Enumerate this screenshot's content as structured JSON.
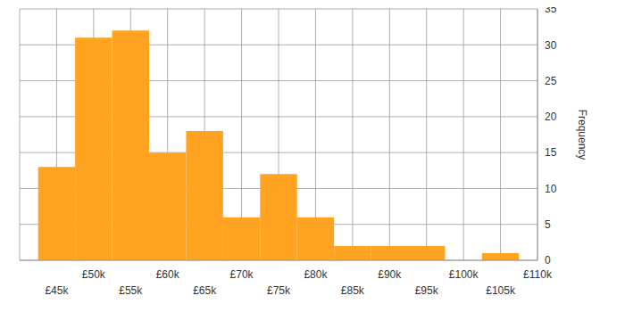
{
  "chart_data": {
    "type": "histogram",
    "y_label": "Frequency",
    "bins": [
      42500,
      47500,
      52500,
      57500,
      62500,
      67500,
      72500,
      77500,
      82500,
      87500,
      92500,
      97500,
      102500,
      107500
    ],
    "values": [
      13,
      31,
      32,
      15,
      18,
      6,
      12,
      6,
      2,
      2,
      2,
      0,
      1
    ],
    "color": "#ffa320",
    "xlim": [
      40000,
      110000
    ],
    "xticks": [
      {
        "value": 45000,
        "label": "£45k"
      },
      {
        "value": 50000,
        "label": "£50k"
      },
      {
        "value": 55000,
        "label": "£55k"
      },
      {
        "value": 60000,
        "label": "£60k"
      },
      {
        "value": 65000,
        "label": "£65k"
      },
      {
        "value": 70000,
        "label": "£70k"
      },
      {
        "value": 75000,
        "label": "£75k"
      },
      {
        "value": 80000,
        "label": "£80k"
      },
      {
        "value": 85000,
        "label": "£85k"
      },
      {
        "value": 90000,
        "label": "£90k"
      },
      {
        "value": 95000,
        "label": "£95k"
      },
      {
        "value": 100000,
        "label": "£100k"
      },
      {
        "value": 105000,
        "label": "£105k"
      },
      {
        "value": 110000,
        "label": "£110k"
      }
    ],
    "ylim": [
      0,
      35
    ],
    "yticks": [
      0,
      5,
      10,
      15,
      20,
      25,
      30,
      35
    ],
    "grid": true
  }
}
